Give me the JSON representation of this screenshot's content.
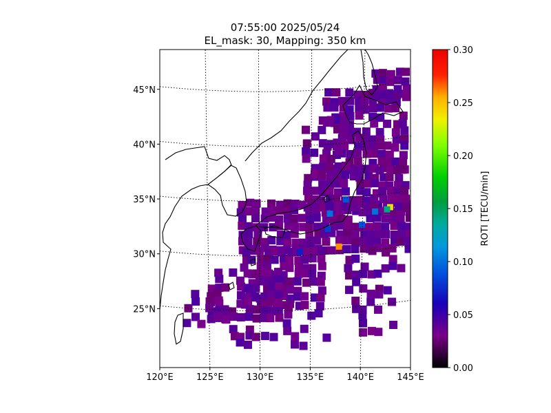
{
  "title": {
    "time": "07:55:00 2025/05/24",
    "params": "EL_mask: 30, Mapping: 350 km"
  },
  "map": {
    "lon_range": [
      120,
      145
    ],
    "lat_range": [
      20,
      49
    ],
    "lon_ticks": [
      "120°E",
      "125°E",
      "130°E",
      "135°E",
      "140°E",
      "145°E"
    ],
    "lat_ticks": [
      "25°N",
      "30°N",
      "35°N",
      "40°N",
      "45°N"
    ],
    "graticule": "dotted",
    "coastlines": true
  },
  "colorbar": {
    "label": "ROTI [TECU/min]",
    "ticks": [
      "0.00",
      "0.05",
      "0.10",
      "0.15",
      "0.20",
      "0.25",
      "0.30"
    ],
    "min": 0.0,
    "max": 0.3,
    "colormap": "nipy_spectral",
    "orientation": "vertical"
  },
  "colors": {
    "background_cell": "#3b0f55",
    "coastline": "#000000",
    "frame": "#000000"
  },
  "roti_hotspots": [
    {
      "lon": 137.9,
      "lat": 31.0,
      "roti": 0.26
    },
    {
      "lon": 143.0,
      "lat": 34.6,
      "roti": 0.24
    },
    {
      "lon": 142.7,
      "lat": 34.4,
      "roti": 0.14
    },
    {
      "lon": 138.6,
      "lat": 35.3,
      "roti": 0.09
    },
    {
      "lon": 137.0,
      "lat": 34.0,
      "roti": 0.1
    },
    {
      "lon": 141.5,
      "lat": 34.2,
      "roti": 0.1
    },
    {
      "lon": 140.2,
      "lat": 33.0,
      "roti": 0.09
    },
    {
      "lon": 134.0,
      "lat": 30.5,
      "roti": 0.07
    },
    {
      "lon": 136.8,
      "lat": 32.6,
      "roti": 0.08
    }
  ]
}
